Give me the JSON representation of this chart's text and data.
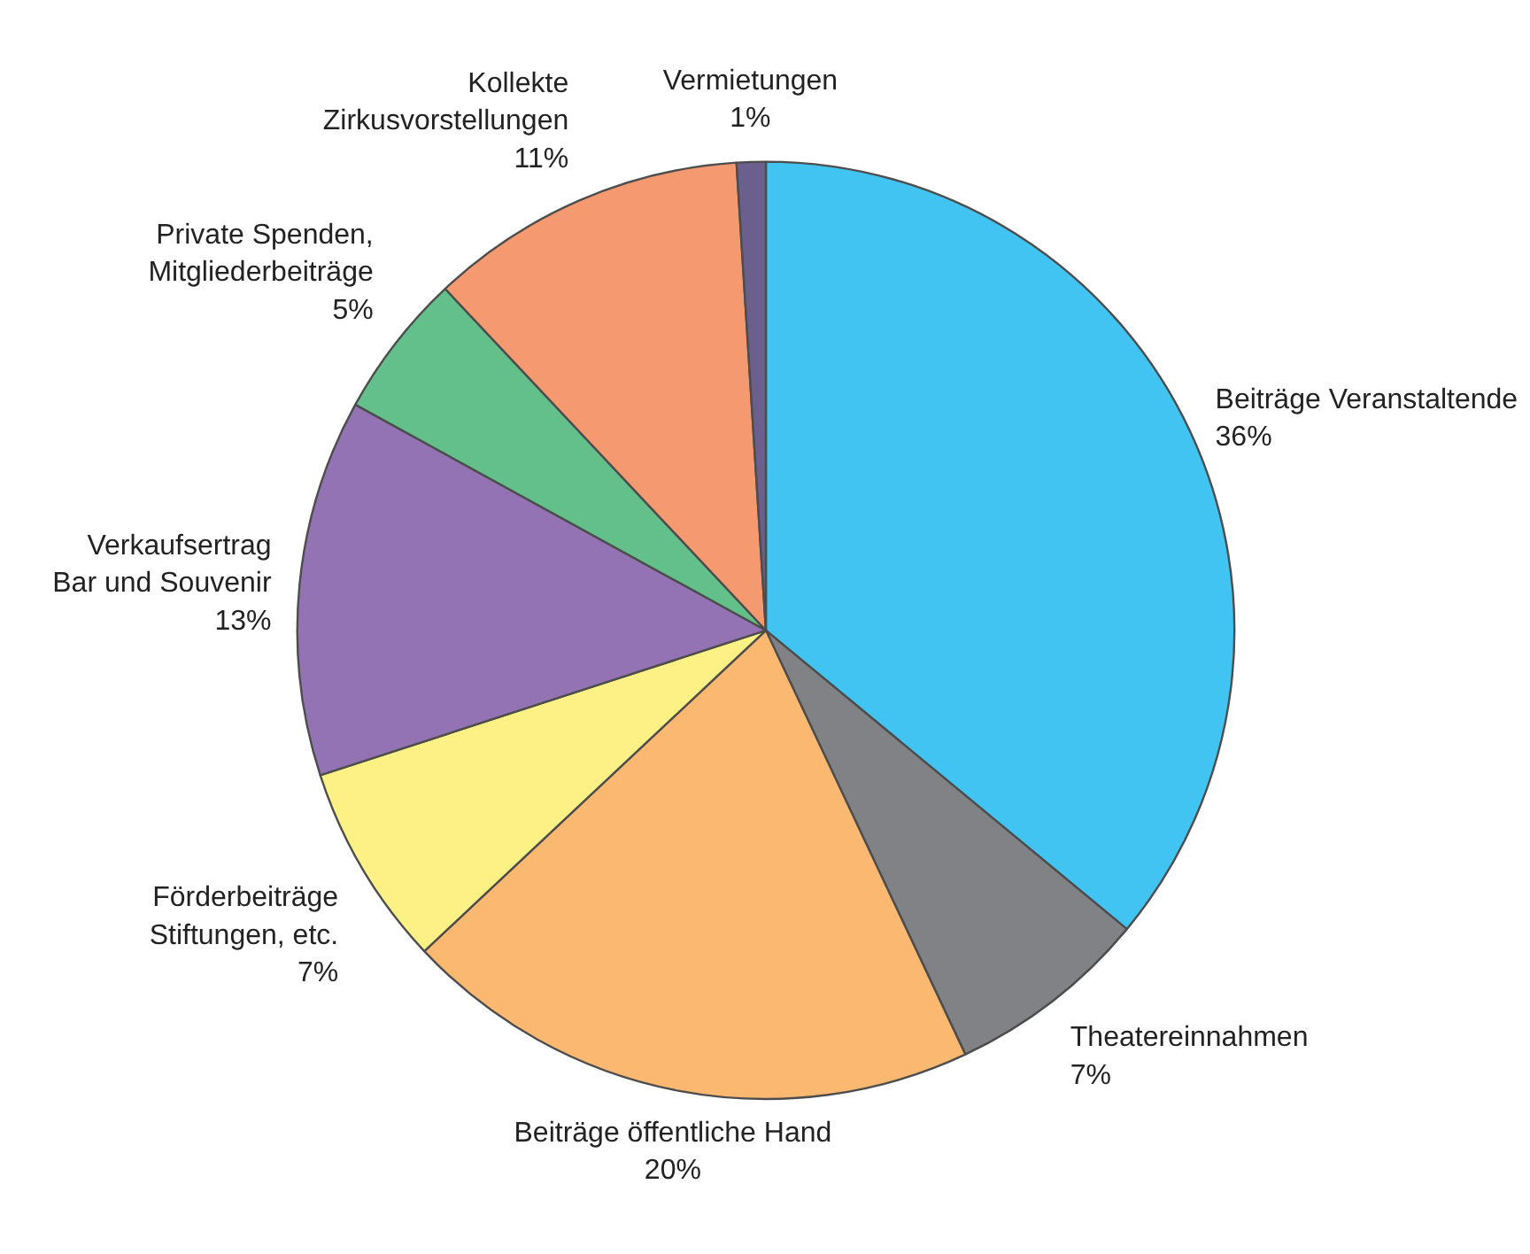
{
  "chart_data": {
    "type": "pie",
    "categories": [
      "Beiträge Veranstaltende",
      "Theatereinnahmen",
      "Beiträge öffentliche Hand",
      "Förderbeiträge\nStiftungen, etc.",
      "Verkaufsertrag\nBar und Souvenir",
      "Private Spenden,\nMitgliederbeiträge",
      "Kollekte\nZirkusvorstellungen",
      "Vermietungen"
    ],
    "values": [
      36,
      7,
      20,
      7,
      13,
      5,
      11,
      1
    ],
    "value_labels": [
      "36%",
      "7%",
      "20%",
      "7%",
      "13%",
      "5%",
      "11%",
      "1%"
    ],
    "colors": [
      "#41c4f2",
      "#808285",
      "#fbb870",
      "#fdf185",
      "#9373b3",
      "#63c08a",
      "#f59a70",
      "#6b5f8e"
    ]
  }
}
